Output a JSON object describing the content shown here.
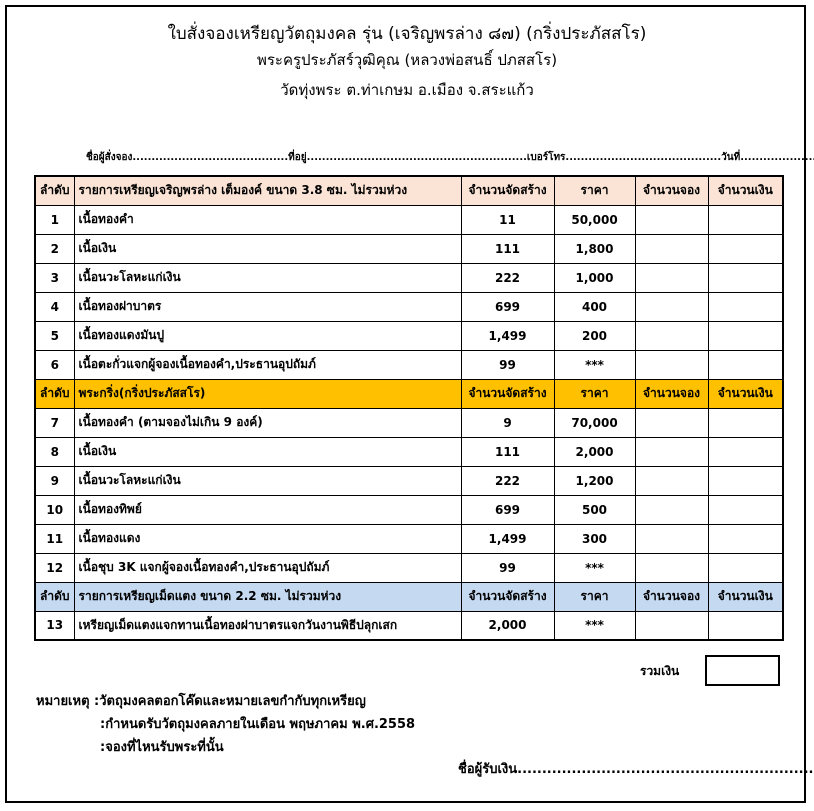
{
  "header": {
    "lines": [
      "ใบสั่งจองเหรียญวัตถุมงคล  รุ่น  (เจริญพรล่าง ๘๗) (กริ่งประภัสสโร)",
      "พระครูประภัสร์วุฒิคุณ  (หลวงพ่อสนธิ์  ปภสสโร)",
      "วัดทุ่งพระ  ต.ท่าเกษม  อ.เมือง  จ.สระแก้ว"
    ]
  },
  "form_line": "ชื่อผู้สั่งจอง.........................................ที่อยู่..........................................................เบอร์โทร.........................................วันที่..............................",
  "table": {
    "sections": [
      {
        "header": [
          "ลำดับ",
          "รายการเหรียญเจริญพรล่าง เต็มองค์ ขนาด 3.8 ซม. ไม่รวมห่วง",
          "จำนวนจัดสร้าง",
          "ราคา",
          "จำนวนจอง",
          "จำนวนเงิน"
        ],
        "rows": [
          [
            "1",
            "เนื้อทองคำ",
            "11",
            "50,000"
          ],
          [
            "2",
            "เนื้อเงิน",
            "111",
            "1,800"
          ],
          [
            "3",
            "เนื้อนวะโลหะแก่เงิน",
            "222",
            "1,000"
          ],
          [
            "4",
            "เนื้อทองฝาบาตร",
            "699",
            "400"
          ],
          [
            "5",
            "เนื้อทองแดงมันปู",
            "1,499",
            "200"
          ],
          [
            "6",
            "เนื้อตะกั่วแจกผู้จองเนื้อทองคำ,ประธานอุปถัมภ์",
            "99",
            "***"
          ]
        ]
      },
      {
        "header": [
          "ลำดับ",
          "พระกริ่ง(กริ่งประภัสสโร)",
          "จำนวนจัดสร้าง",
          "ราคา",
          "จำนวนจอง",
          "จำนวนเงิน"
        ],
        "rows": [
          [
            "7",
            "เนื้อทองคำ (ตามจองไม่เกิน 9 องค์)",
            "9",
            "70,000"
          ],
          [
            "8",
            "เนื้อเงิน",
            "111",
            "2,000"
          ],
          [
            "9",
            "เนื้อนวะโลหะแก่เงิน",
            "222",
            "1,200"
          ],
          [
            "10",
            "เนื้อทองทิพย์",
            "699",
            "500"
          ],
          [
            "11",
            "เนื้อทองแดง",
            "1,499",
            "300"
          ],
          [
            "12",
            "เนื้อชุบ 3K แจกผู้จองเนื้อทองคำ,ประธานอุปถัมภ์",
            "99",
            "***"
          ]
        ]
      },
      {
        "header": [
          "ลำดับ",
          "รายการเหรียญเม็ดแตง ขนาด 2.2 ซม. ไม่รวมห่วง",
          "จำนวนจัดสร้าง",
          "ราคา",
          "จำนวนจอง",
          "จำนวนเงิน"
        ],
        "rows": [
          [
            "13",
            "เหรียญเม็ดแตงแจกทานเนื้อทองฝาบาตรแจกวันงานพิธีปลุกเสก",
            "2,000",
            "***"
          ]
        ]
      }
    ]
  },
  "total_label": "รวมเงิน",
  "notes": [
    "หมายเหตุ :วัตถุมงคลตอกโค๊ดและหมายเลขกำกับทุกเหรียญ",
    ":กำหนดรับวัตถุมงคลภายในเดือน พฤษภาคม พ.ศ.2558",
    ":จองที่ไหนรับพระที่นั้น"
  ],
  "signature": "ชื่อผู้รับเงิน.................................................................."
}
